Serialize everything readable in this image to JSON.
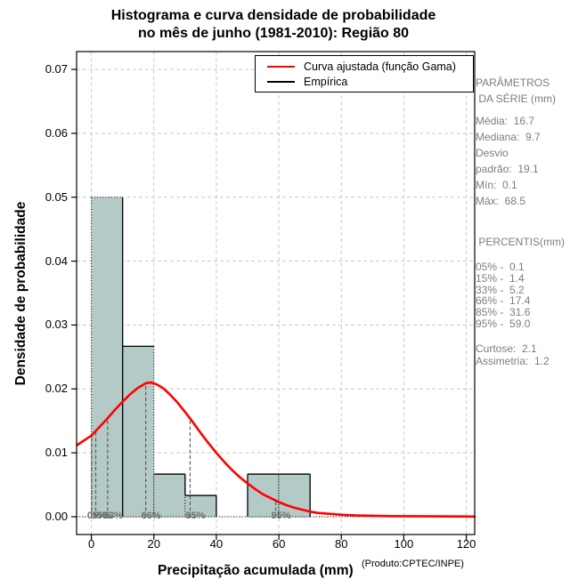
{
  "title": {
    "line1": "Histograma e curva densidade de probabilidade",
    "line2": "no mês de junho (1981-2010): Região 80"
  },
  "axes": {
    "x_label": "Precipitação acumulada (mm)",
    "x_label_sup": "(Produto:CPTEC/INPE)",
    "y_label": "Densidade de probabilidade",
    "x_ticks": [
      "0",
      "20",
      "40",
      "60",
      "80",
      "100",
      "120"
    ],
    "y_ticks": [
      "0.00",
      "0.01",
      "0.02",
      "0.03",
      "0.04",
      "0.05",
      "0.06",
      "0.07"
    ]
  },
  "legend": [
    {
      "label": "Curva ajustada (função Gama)",
      "color": "#ff0000"
    },
    {
      "label": "Empírica",
      "color": "#000000"
    }
  ],
  "side_panel": {
    "header": [
      "PARÂMETROS",
      " DA SÉRIE (mm)"
    ],
    "params": [
      "Média:  16.7",
      "Mediana:  9.7",
      "Desvio",
      "padrão:  19.1",
      "Mín:  0.1",
      "Máx:  68.5"
    ],
    "percentis_header": " PERCENTIS(mm)",
    "percentis": [
      "05% -  0.1",
      "15% -  1.4",
      "33% -  5.2",
      "66% -  17.4",
      "85% -  31.6",
      "95% -  59.0"
    ],
    "moments": [
      "Curtose:  2.1",
      "Assimetria:  1.2"
    ]
  },
  "chart_data": {
    "type": "bar",
    "subtype": "histogram-with-density-curve",
    "title": "Histograma e curva densidade de probabilidade no mês de junho (1981-2010): Região 80",
    "xlabel": "Precipitação acumulada (mm)",
    "ylabel": "Densidade de probabilidade",
    "xlim": [
      -4.6,
      122.8
    ],
    "ylim": [
      0,
      0.07
    ],
    "grid": true,
    "legend_position": "top",
    "bar_fill": "#b4cac7",
    "bin_breaks": [
      0,
      10,
      20,
      30,
      40,
      50,
      60,
      70
    ],
    "bin_densities": [
      0.05,
      0.02667,
      0.00667,
      0.00333,
      0,
      0.00667,
      0.00667
    ],
    "empirical_segments": [
      [
        10,
        0,
        10,
        0.05
      ],
      [
        10,
        0.02667,
        20,
        0.02667
      ],
      [
        20,
        0.00667,
        30,
        0.00667
      ],
      [
        30,
        0.00667,
        30,
        0.00333
      ],
      [
        30,
        0.00333,
        40,
        0.00333
      ],
      [
        40,
        0.00333,
        40,
        0
      ],
      [
        50,
        0,
        50,
        0.00667
      ],
      [
        50,
        0.00667,
        70,
        0.00667
      ],
      [
        70,
        0.00667,
        70,
        0
      ]
    ],
    "gamma_curve": {
      "name": "Curva ajustada (função Gama)",
      "color": "#ff0000",
      "points": [
        [
          -4.6,
          0.0112
        ],
        [
          0,
          0.0127
        ],
        [
          2.5,
          0.014
        ],
        [
          5,
          0.0153
        ],
        [
          7.5,
          0.0167
        ],
        [
          10,
          0.018
        ],
        [
          12.5,
          0.0192
        ],
        [
          15,
          0.0202
        ],
        [
          17.5,
          0.0209
        ],
        [
          19,
          0.021
        ],
        [
          21,
          0.0207
        ],
        [
          23,
          0.0201
        ],
        [
          25,
          0.0192
        ],
        [
          27.5,
          0.0179
        ],
        [
          30,
          0.0164
        ],
        [
          32.5,
          0.0148
        ],
        [
          35,
          0.0131
        ],
        [
          37.5,
          0.0115
        ],
        [
          40,
          0.01
        ],
        [
          42.5,
          0.0086
        ],
        [
          45,
          0.0073
        ],
        [
          47.5,
          0.0062
        ],
        [
          50,
          0.0052
        ],
        [
          52.5,
          0.0043
        ],
        [
          55,
          0.0035
        ],
        [
          57.5,
          0.0029
        ],
        [
          60,
          0.0023
        ],
        [
          62.5,
          0.0018
        ],
        [
          65,
          0.0014
        ],
        [
          67.5,
          0.0011
        ],
        [
          70,
          0.0008
        ],
        [
          72.5,
          0.0006
        ],
        [
          75,
          0.0005
        ],
        [
          80,
          0.0003
        ],
        [
          85,
          0.0002
        ],
        [
          90,
          0.00015
        ],
        [
          95,
          0.0001
        ],
        [
          100,
          8e-05
        ],
        [
          110,
          5e-05
        ],
        [
          122.7,
          3e-05
        ]
      ]
    },
    "percentiles": [
      {
        "label": "05%",
        "x": 0.1
      },
      {
        "label": "15%",
        "x": 1.4
      },
      {
        "label": "33%",
        "x": 5.2
      },
      {
        "label": "66%",
        "x": 17.4
      },
      {
        "label": "85%",
        "x": 31.6
      },
      {
        "label": "95%",
        "x": 59.0
      }
    ],
    "stats": {
      "media": 16.7,
      "mediana": 9.7,
      "desvio_padrao": 19.1,
      "min": 0.1,
      "max": 68.5,
      "curtose": 2.1,
      "assimetria": 1.2,
      "percentis": {
        "05%": 0.1,
        "15%": 1.4,
        "33%": 5.2,
        "66%": 17.4,
        "85%": 31.6,
        "95%": 59.0
      }
    }
  }
}
